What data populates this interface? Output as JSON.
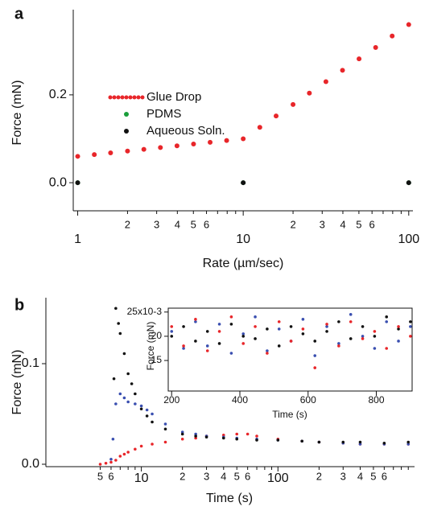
{
  "chart_data": [
    {
      "type": "scatter",
      "panel_label": "a",
      "xlabel": "Rate (µm/sec)",
      "ylabel": "Force (mN)",
      "xlog": true,
      "xlim": [
        0.94,
        106
      ],
      "ylim": [
        -0.064,
        0.394
      ],
      "xticks": [
        1,
        2,
        3,
        4,
        5,
        6,
        10,
        {
          "value": 20,
          "label": "2"
        },
        {
          "value": 30,
          "label": "3"
        },
        {
          "value": 40,
          "label": "4"
        },
        {
          "value": 50,
          "label": "5"
        },
        {
          "value": 60,
          "label": "6"
        },
        100
      ],
      "xminor": [
        7,
        8,
        9,
        70,
        80,
        90
      ],
      "yticks": [
        {
          "value": 0,
          "label": "0.0"
        },
        0.2
      ],
      "legend": "upper left",
      "series": [
        {
          "name": "Glue Drop",
          "color": "#e8262a",
          "x": [
            1,
            1.26,
            1.58,
            2,
            2.51,
            3.16,
            3.98,
            5.01,
            6.31,
            7.94,
            10,
            12.6,
            15.8,
            20,
            25.1,
            31.6,
            39.8,
            50.1,
            63.1,
            79.4,
            100
          ],
          "values": [
            0.06,
            0.064,
            0.068,
            0.072,
            0.076,
            0.08,
            0.084,
            0.088,
            0.092,
            0.096,
            0.1,
            0.126,
            0.152,
            0.178,
            0.204,
            0.23,
            0.256,
            0.282,
            0.308,
            0.334,
            0.36
          ]
        },
        {
          "name": "PDMS",
          "color": "#1a9e3a",
          "x": [
            1,
            10,
            100
          ],
          "values": [
            0,
            0,
            0
          ]
        },
        {
          "name": "Aqueous Soln.",
          "color": "#111111",
          "x": [
            1,
            10,
            100
          ],
          "values": [
            0,
            0,
            0
          ]
        }
      ]
    },
    {
      "type": "scatter",
      "panel_label": "b",
      "xlabel": "Time (s)",
      "ylabel": "Force (mN)",
      "xlog": true,
      "xlim": [
        2.0,
        1000
      ],
      "ylim": [
        -0.0024,
        0.1656
      ],
      "xticks": [
        5,
        6,
        10,
        {
          "value": 20,
          "label": "2"
        },
        {
          "value": 30,
          "label": "3"
        },
        {
          "value": 40,
          "label": "4"
        },
        {
          "value": 50,
          "label": "5"
        },
        {
          "value": 60,
          "label": "6"
        },
        100,
        {
          "value": 200,
          "label": "2"
        },
        {
          "value": 300,
          "label": "3"
        },
        {
          "value": 400,
          "label": "4"
        },
        {
          "value": 500,
          "label": "5"
        },
        {
          "value": 600,
          "label": "6"
        }
      ],
      "xminor": [
        7,
        8,
        9,
        70,
        80,
        90,
        700,
        800,
        900
      ],
      "yticks": [
        {
          "value": 0,
          "label": "0.0"
        },
        0.1
      ],
      "series": [
        {
          "color": "#e8262a",
          "x": [
            5,
            5.5,
            6,
            6.5,
            7,
            7.5,
            8,
            9,
            10,
            12,
            15,
            20,
            25,
            30,
            40,
            50,
            60,
            70,
            100,
            150,
            200,
            300,
            400,
            600,
            900
          ],
          "values": [
            0,
            0.001,
            0.002,
            0.004,
            0.008,
            0.01,
            0.012,
            0.015,
            0.018,
            0.02,
            0.022,
            0.025,
            0.026,
            0.028,
            0.029,
            0.03,
            0.03,
            0.028,
            0.025,
            0.023,
            0.022,
            0.021,
            0.02,
            0.02,
            0.02
          ]
        },
        {
          "color": "#3a4fb0",
          "x": [
            6,
            6.2,
            6.5,
            7,
            7.5,
            8,
            9,
            10,
            11,
            12,
            15,
            20,
            25,
            30,
            40,
            50,
            70,
            100,
            150,
            200,
            300,
            400,
            600,
            900
          ],
          "values": [
            0.005,
            0.025,
            0.06,
            0.07,
            0.066,
            0.062,
            0.06,
            0.058,
            0.054,
            0.05,
            0.04,
            0.032,
            0.03,
            0.028,
            0.027,
            0.026,
            0.025,
            0.024,
            0.023,
            0.022,
            0.021,
            0.02,
            0.02,
            0.02
          ]
        },
        {
          "color": "#111111",
          "x": [
            6.3,
            6.5,
            6.8,
            7,
            7.5,
            8,
            8.5,
            9,
            10,
            11,
            12,
            15,
            20,
            25,
            30,
            40,
            50,
            70,
            100,
            150,
            200,
            300,
            400,
            600,
            900
          ],
          "values": [
            0.085,
            0.155,
            0.14,
            0.13,
            0.11,
            0.09,
            0.08,
            0.07,
            0.055,
            0.048,
            0.042,
            0.035,
            0.03,
            0.028,
            0.027,
            0.026,
            0.025,
            0.024,
            0.024,
            0.023,
            0.022,
            0.022,
            0.022,
            0.021,
            0.022
          ]
        }
      ]
    },
    {
      "type": "scatter",
      "xlabel": "Time (s)",
      "ylabel": "Force (mN)",
      "frame": true,
      "xlim": [
        190,
        905
      ],
      "ylim": [
        8.7,
        25.8
      ],
      "xticks": [
        200,
        400,
        600,
        800
      ],
      "yticks": [
        {
          "value": 25,
          "label": "25x10-3"
        },
        20,
        15
      ],
      "series": [
        {
          "color": "#3a4fb0",
          "x": [
            200,
            235,
            270,
            305,
            340,
            375,
            410,
            445,
            480,
            515,
            550,
            585,
            620,
            655,
            690,
            725,
            760,
            795,
            830,
            865,
            900
          ],
          "values": [
            21,
            17.5,
            23,
            18,
            22.5,
            16.5,
            20.5,
            24,
            17,
            21.5,
            19,
            23.5,
            16,
            22,
            18.5,
            24.5,
            20,
            17.5,
            23,
            19,
            22
          ]
        },
        {
          "color": "#111111",
          "x": [
            200,
            235,
            270,
            305,
            340,
            375,
            410,
            445,
            480,
            515,
            550,
            585,
            620,
            655,
            690,
            725,
            760,
            795,
            830,
            865,
            900
          ],
          "values": [
            20,
            22,
            19,
            21,
            18.5,
            22.5,
            20,
            19.5,
            21.5,
            18,
            22,
            20.5,
            19,
            21,
            23,
            19.5,
            22,
            20,
            24,
            21.5,
            23
          ]
        },
        {
          "color": "#e8262a",
          "x": [
            200,
            235,
            270,
            305,
            340,
            375,
            410,
            445,
            480,
            515,
            550,
            585,
            620,
            655,
            690,
            725,
            760,
            795,
            830,
            865,
            900
          ],
          "values": [
            22,
            18,
            23.5,
            17,
            21,
            24,
            18.5,
            22,
            16.5,
            23,
            19,
            21.5,
            13.5,
            22.5,
            18,
            23,
            19.5,
            21,
            17.5,
            22,
            20
          ]
        }
      ]
    }
  ]
}
